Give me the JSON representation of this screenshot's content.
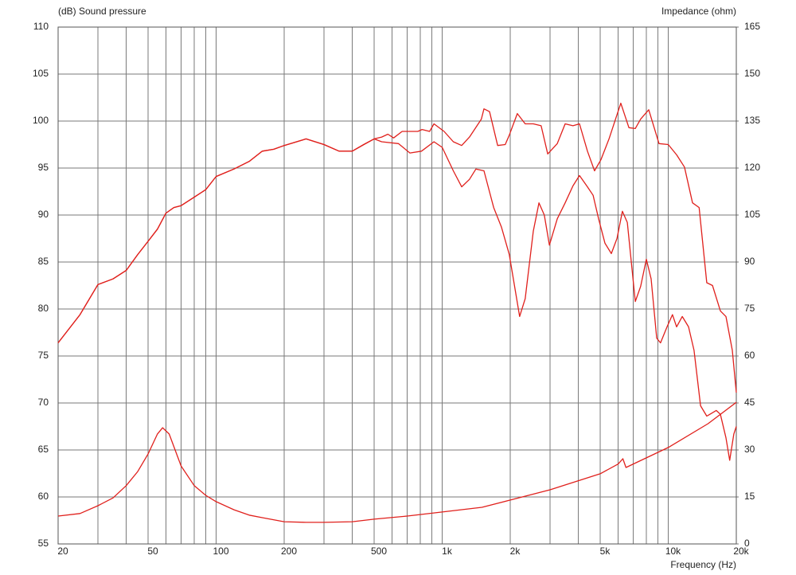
{
  "chart_data": {
    "type": "line",
    "y_label": "(dB)  Sound pressure",
    "y2_label": "Impedance  (ohm)",
    "x_label": "Frequency  (Hz)",
    "xscale": "log",
    "xlim": [
      20,
      20000
    ],
    "xticks": [
      20,
      50,
      100,
      200,
      500,
      {
        "value": 1000,
        "label": "1k"
      },
      {
        "value": 2000,
        "label": "2k"
      },
      {
        "value": 5000,
        "label": "5k"
      },
      {
        "value": 10000,
        "label": "10k"
      },
      {
        "value": 20000,
        "label": "20k"
      }
    ],
    "x_minor_ticks": [
      30,
      40,
      60,
      70,
      80,
      90,
      300,
      400,
      600,
      700,
      800,
      900,
      3000,
      4000,
      6000,
      7000,
      8000,
      9000
    ],
    "ylim": [
      55,
      110
    ],
    "yticks": [
      55,
      60,
      65,
      70,
      75,
      80,
      85,
      90,
      95,
      100,
      105,
      110
    ],
    "y2lim": [
      0,
      165
    ],
    "y2ticks": [
      0,
      15,
      30,
      45,
      60,
      75,
      90,
      105,
      120,
      135,
      150,
      165
    ],
    "grid": true,
    "series": [
      {
        "color": "#e0201c",
        "x": [
          20,
          25,
          30,
          35,
          40,
          45,
          50,
          55,
          60,
          65,
          70,
          80,
          90,
          100,
          120,
          140,
          160,
          180,
          200,
          250,
          300,
          350,
          400,
          450,
          500,
          540,
          575,
          610,
          665,
          780,
          815,
          880,
          920,
          1020,
          1120,
          1220,
          1320,
          1490,
          1530,
          1620,
          1760,
          1900,
          1980,
          2150,
          2330,
          2530,
          2740,
          2930,
          3230,
          3500,
          3790,
          4050,
          4390,
          4720,
          5040,
          5470,
          6170,
          6700,
          7150,
          7550,
          8200,
          9100,
          10000,
          10900,
          11800,
          12800,
          13700,
          14800,
          15700,
          17000,
          18000,
          19200,
          20000
        ],
        "values": [
          76.4,
          79.4,
          82.6,
          83.2,
          84.1,
          85.8,
          87.2,
          88.5,
          90.2,
          90.8,
          91.0,
          91.9,
          92.7,
          94.1,
          94.9,
          95.7,
          96.8,
          97.0,
          97.4,
          98.1,
          97.5,
          96.8,
          96.8,
          97.5,
          98.1,
          98.3,
          98.6,
          98.2,
          98.9,
          98.9,
          99.1,
          98.9,
          99.7,
          98.9,
          97.8,
          97.4,
          98.3,
          100.2,
          101.3,
          101.0,
          97.4,
          97.5,
          98.5,
          100.8,
          99.7,
          99.7,
          99.5,
          96.5,
          97.6,
          99.7,
          99.5,
          99.7,
          96.8,
          94.7,
          95.9,
          98.1,
          101.9,
          99.3,
          99.2,
          100.2,
          101.2,
          97.6,
          97.5,
          96.4,
          95.1,
          91.3,
          90.8,
          82.8,
          82.5,
          79.8,
          79.2,
          75.6,
          71.1
        ]
      },
      {
        "color": "#e0201c",
        "x": [
          20,
          25,
          30,
          35,
          40,
          45,
          50,
          55,
          60,
          65,
          70,
          80,
          90,
          100,
          120,
          140,
          160,
          180,
          200,
          250,
          300,
          350,
          400,
          450,
          500,
          540,
          640,
          720,
          810,
          920,
          1000,
          1120,
          1220,
          1320,
          1410,
          1530,
          1690,
          1830,
          1980,
          2200,
          2330,
          2530,
          2680,
          2830,
          2980,
          3230,
          3500,
          3790,
          4050,
          4390,
          4650,
          4920,
          5250,
          5600,
          5930,
          6270,
          6590,
          7150,
          7550,
          8000,
          8400,
          8890,
          9240,
          9880,
          10440,
          10890,
          11530,
          12300,
          13000,
          13900,
          14800,
          16300,
          17000,
          18000,
          18700,
          19500,
          20000
        ],
        "values": [
          76.4,
          79.4,
          82.6,
          83.2,
          84.1,
          85.8,
          87.2,
          88.5,
          90.2,
          90.8,
          91.0,
          91.9,
          92.7,
          94.1,
          94.9,
          95.7,
          96.8,
          97.0,
          97.4,
          98.1,
          97.5,
          96.8,
          96.8,
          97.5,
          98.1,
          97.8,
          97.6,
          96.6,
          96.8,
          97.8,
          97.2,
          94.7,
          93.0,
          93.8,
          94.9,
          94.7,
          90.8,
          88.7,
          85.8,
          79.2,
          81.1,
          88.3,
          91.3,
          90.0,
          86.8,
          89.6,
          91.3,
          93.1,
          94.2,
          93.0,
          92.1,
          89.6,
          87.0,
          85.9,
          87.5,
          90.4,
          89.2,
          80.8,
          82.4,
          85.3,
          83.2,
          76.9,
          76.4,
          78.1,
          79.4,
          78.1,
          79.2,
          78.1,
          75.6,
          69.7,
          68.6,
          69.2,
          68.8,
          66.3,
          63.9,
          66.7,
          67.5
        ]
      },
      {
        "color": "#e0201c",
        "axis": "y2",
        "x": [
          20,
          25,
          30,
          35,
          40,
          45,
          50,
          55,
          58,
          62,
          70,
          80,
          90,
          100,
          120,
          140,
          160,
          200,
          250,
          300,
          400,
          500,
          700,
          1000,
          1500,
          2000,
          3000,
          5000,
          6000,
          6300,
          6500,
          10000,
          15000,
          20000
        ],
        "values": [
          8.9,
          9.7,
          12.2,
          14.7,
          18.6,
          23.1,
          28.7,
          35.1,
          37.1,
          35.1,
          24.9,
          18.6,
          15.5,
          13.5,
          10.9,
          9.2,
          8.4,
          7.1,
          6.9,
          6.9,
          7.1,
          7.9,
          8.9,
          10.2,
          11.7,
          14.0,
          17.3,
          22.4,
          25.5,
          27.2,
          24.4,
          30.8,
          38.4,
          45.2
        ]
      }
    ]
  }
}
